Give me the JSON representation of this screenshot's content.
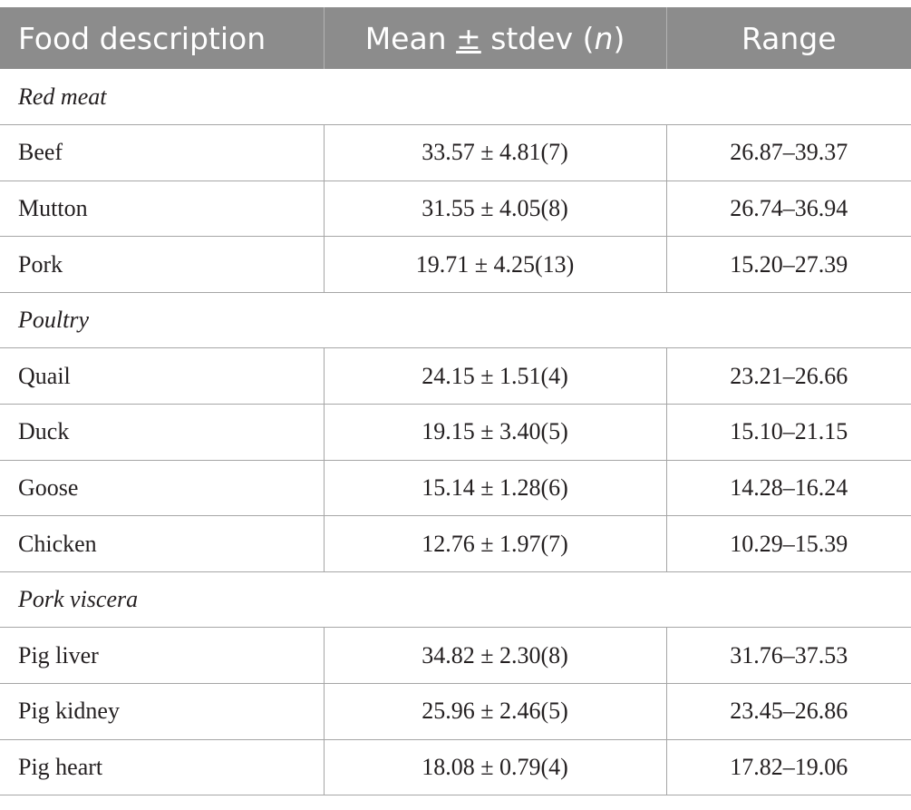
{
  "table": {
    "headers": {
      "food": "Food description",
      "mean_prefix": "Mean ",
      "mean_pm": "±",
      "mean_mid": " stdev (",
      "mean_n": "n",
      "mean_suffix": ")",
      "range": "Range"
    },
    "groups": [
      {
        "label": "Red meat",
        "rows": [
          {
            "name": "Beef",
            "mean": "33.57 ± 4.81(7)",
            "range": "26.87–39.37"
          },
          {
            "name": "Mutton",
            "mean": "31.55 ± 4.05(8)",
            "range": "26.74–36.94"
          },
          {
            "name": "Pork",
            "mean": "19.71 ± 4.25(13)",
            "range": "15.20–27.39"
          }
        ]
      },
      {
        "label": "Poultry",
        "rows": [
          {
            "name": "Quail",
            "mean": "24.15 ± 1.51(4)",
            "range": "23.21–26.66"
          },
          {
            "name": "Duck",
            "mean": "19.15 ± 3.40(5)",
            "range": "15.10–21.15"
          },
          {
            "name": "Goose",
            "mean": "15.14 ± 1.28(6)",
            "range": "14.28–16.24"
          },
          {
            "name": "Chicken",
            "mean": "12.76 ± 1.97(7)",
            "range": "10.29–15.39"
          }
        ]
      },
      {
        "label": "Pork viscera",
        "rows": [
          {
            "name": "Pig liver",
            "mean": "34.82 ± 2.30(8)",
            "range": "31.76–37.53"
          },
          {
            "name": "Pig kidney",
            "mean": "25.96 ± 2.46(5)",
            "range": "23.45–26.86"
          },
          {
            "name": "Pig heart",
            "mean": "18.08 ± 0.79(4)",
            "range": "17.82–19.06"
          }
        ]
      }
    ]
  }
}
